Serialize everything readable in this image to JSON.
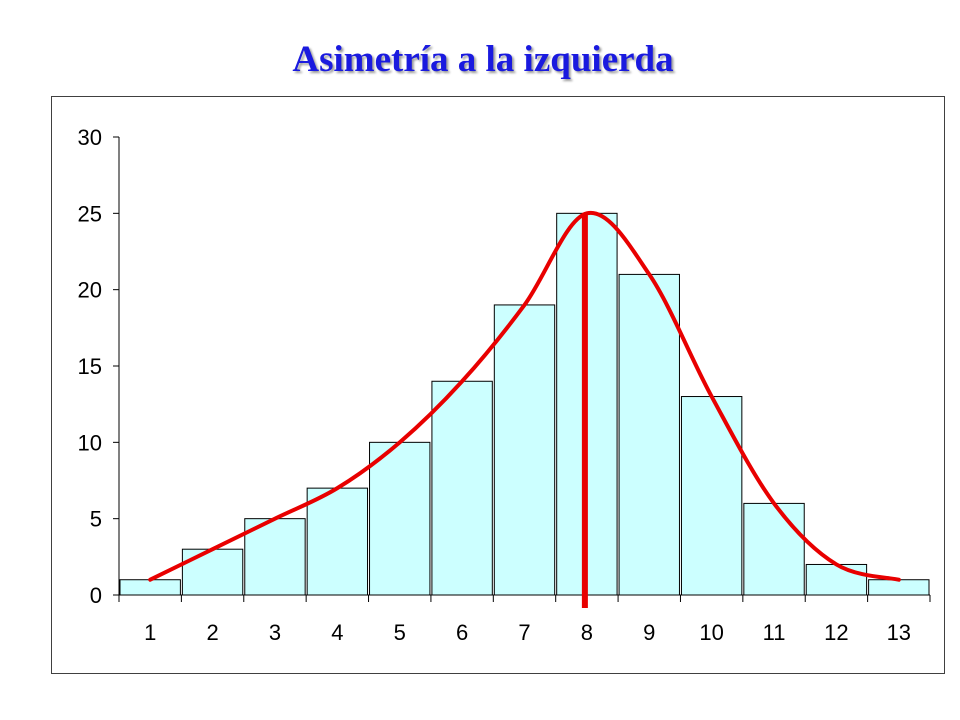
{
  "page": {
    "title": "Asimetría a la izquierda"
  },
  "chart_data": {
    "type": "bar",
    "categories": [
      "1",
      "2",
      "3",
      "4",
      "5",
      "6",
      "7",
      "8",
      "9",
      "10",
      "11",
      "12",
      "13"
    ],
    "values": [
      1,
      3,
      5,
      7,
      10,
      14,
      19,
      25,
      21,
      13,
      6,
      2,
      1
    ],
    "title": "Asimetría a la izquierda",
    "xlabel": "",
    "ylabel": "",
    "ylim": [
      0,
      30
    ],
    "yticks": [
      0,
      5,
      10,
      15,
      20,
      25,
      30
    ],
    "grid": false,
    "legend": "none",
    "overlay_curve": true,
    "mode_marker_category": "8",
    "colors": {
      "bar_fill": "#ccffff",
      "bar_stroke": "#000000",
      "curve": "#e80000",
      "marker": "#e80000"
    }
  }
}
